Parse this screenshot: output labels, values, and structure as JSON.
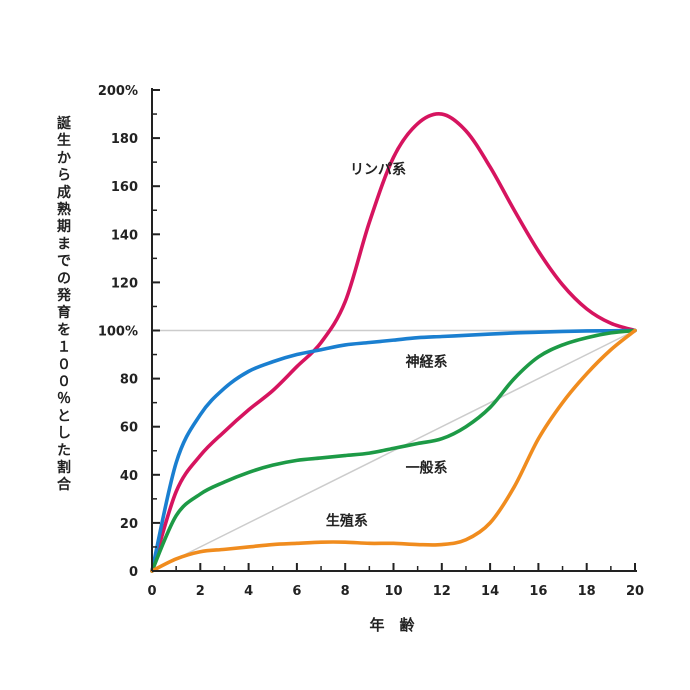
{
  "chart_data": {
    "type": "line",
    "xlabel": "年　齢",
    "ylabel": "誕生から成熟期までの発育を１００％とした割合",
    "xlim": [
      0,
      20
    ],
    "ylim": [
      0,
      200
    ],
    "x_ticks": [
      "0",
      "2",
      "4",
      "6",
      "8",
      "10",
      "12",
      "14",
      "16",
      "18",
      "20"
    ],
    "y_ticks": [
      "0",
      "20",
      "40",
      "60",
      "80",
      "100%",
      "120",
      "140",
      "160",
      "180",
      "200%"
    ],
    "reference_lines": [
      {
        "type": "horizontal",
        "y": 100,
        "color": "#cccccc"
      },
      {
        "type": "diagonal",
        "from": [
          0,
          0
        ],
        "to": [
          20,
          100
        ],
        "color": "#cccccc"
      }
    ],
    "series": [
      {
        "name": "リンパ系",
        "color": "#d6145f",
        "x": [
          0,
          1,
          2,
          3,
          4,
          5,
          6,
          7,
          8,
          9,
          10,
          11,
          12,
          13,
          14,
          15,
          16,
          17,
          18,
          19,
          20
        ],
        "y": [
          0,
          33,
          48,
          58,
          67,
          75,
          85,
          95,
          112,
          145,
          172,
          186,
          190,
          183,
          168,
          150,
          133,
          119,
          109,
          103,
          100
        ]
      },
      {
        "name": "神経系",
        "color": "#1a7fd0",
        "x": [
          0,
          1,
          2,
          3,
          4,
          5,
          6,
          7,
          8,
          9,
          10,
          11,
          12,
          13,
          14,
          15,
          16,
          17,
          18,
          19,
          20
        ],
        "y": [
          0,
          45,
          65,
          76,
          83,
          87,
          90,
          92,
          94,
          95,
          96,
          97,
          97.5,
          98,
          98.5,
          99,
          99.3,
          99.6,
          99.8,
          99.9,
          100
        ]
      },
      {
        "name": "一般系",
        "color": "#1d9a46",
        "x": [
          0,
          1,
          2,
          3,
          4,
          5,
          6,
          7,
          8,
          9,
          10,
          11,
          12,
          13,
          14,
          15,
          16,
          17,
          18,
          19,
          20
        ],
        "y": [
          0,
          23,
          32,
          37,
          41,
          44,
          46,
          47,
          48,
          49,
          51,
          53,
          55,
          60,
          68,
          80,
          89,
          94,
          97,
          99,
          100
        ]
      },
      {
        "name": "生殖系",
        "color": "#f08c1e",
        "x": [
          0,
          1,
          2,
          3,
          4,
          5,
          6,
          7,
          8,
          9,
          10,
          11,
          12,
          13,
          14,
          15,
          16,
          17,
          18,
          19,
          20
        ],
        "y": [
          0,
          5,
          8,
          9,
          10,
          11,
          11.5,
          12,
          12,
          11.5,
          11.5,
          11,
          11,
          13,
          20,
          35,
          55,
          70,
          82,
          92,
          100
        ]
      }
    ],
    "annotations": [
      {
        "text": "リンパ系",
        "x": 8.2,
        "y": 165
      },
      {
        "text": "神経系",
        "x": 10.5,
        "y": 85
      },
      {
        "text": "一般系",
        "x": 10.5,
        "y": 41
      },
      {
        "text": "生殖系",
        "x": 7.2,
        "y": 19
      }
    ],
    "grid": false,
    "legend": "none"
  }
}
